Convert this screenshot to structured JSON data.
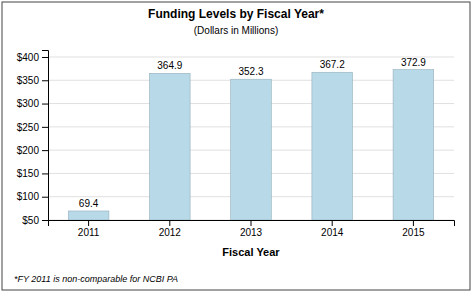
{
  "chart_data": {
    "type": "bar",
    "title": "Funding Levels by Fiscal Year*",
    "subtitle": "(Dollars in Millions)",
    "xlabel": "Fiscal Year",
    "categories": [
      "2011",
      "2012",
      "2013",
      "2014",
      "2015"
    ],
    "values": [
      69.4,
      364.9,
      352.3,
      367.2,
      372.9
    ],
    "color": "#b8d9e8",
    "ylim": [
      50,
      415
    ],
    "yticks": [
      {
        "value": 50,
        "label": "$50"
      },
      {
        "value": 100,
        "label": "$100"
      },
      {
        "value": 150,
        "label": "$150"
      },
      {
        "value": 200,
        "label": "$200"
      },
      {
        "value": 250,
        "label": "$250"
      },
      {
        "value": 300,
        "label": "$300"
      },
      {
        "value": 350,
        "label": "$350"
      },
      {
        "value": 400,
        "label": "$400"
      }
    ],
    "grid": true,
    "data_labels": true,
    "annotations": [
      "*FY 2011 is non-comparable for NCBI PA"
    ]
  }
}
